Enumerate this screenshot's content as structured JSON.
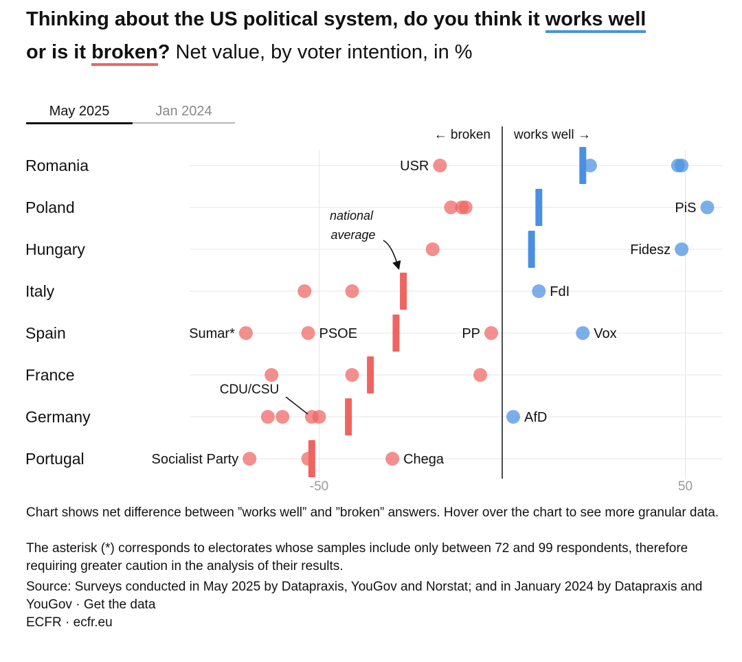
{
  "title": {
    "part1": "Thinking about the US political system, do you think it ",
    "works_well": "works well",
    "part2": "or is it ",
    "broken": "broken",
    "part3": "?",
    "rest": " Net value, by voter intention, in %"
  },
  "tabs": [
    {
      "label": "May 2025",
      "active": true
    },
    {
      "label": "Jan 2024",
      "active": false
    }
  ],
  "colors": {
    "broken": "#ef6461",
    "works_well": "#4a90e2",
    "grid": "#e6e6e6",
    "axis": "#111111"
  },
  "chart_data": {
    "type": "scatter",
    "title": "Thinking about the US political system, do you think it works well or is it broken? Net value, by voter intention, in %",
    "xlim": [
      -80,
      60
    ],
    "xticks": [
      -50,
      50
    ],
    "x_tick_labels": [
      "-50",
      "50"
    ],
    "direction_labels": {
      "left": "← broken",
      "right": "works well →"
    },
    "countries": [
      "Romania",
      "Poland",
      "Hungary",
      "Italy",
      "Spain",
      "France",
      "Germany",
      "Portugal"
    ],
    "national_average": [
      22,
      10,
      8,
      -27,
      -29,
      -36,
      -42,
      -52
    ],
    "parties": [
      {
        "country": "Romania",
        "value": -17,
        "label": "USR",
        "label_side": "left"
      },
      {
        "country": "Romania",
        "value": 24
      },
      {
        "country": "Romania",
        "value": 48
      },
      {
        "country": "Romania",
        "value": 49
      },
      {
        "country": "Poland",
        "value": -14
      },
      {
        "country": "Poland",
        "value": -11
      },
      {
        "country": "Poland",
        "value": -10
      },
      {
        "country": "Poland",
        "value": 56,
        "label": "PiS",
        "label_side": "left"
      },
      {
        "country": "Hungary",
        "value": -19
      },
      {
        "country": "Hungary",
        "value": 49,
        "label": "Fidesz",
        "label_side": "left"
      },
      {
        "country": "Italy",
        "value": -54
      },
      {
        "country": "Italy",
        "value": -41
      },
      {
        "country": "Italy",
        "value": 10,
        "label": "FdI",
        "label_side": "right"
      },
      {
        "country": "Spain",
        "value": -70,
        "label": "Sumar*",
        "label_side": "left"
      },
      {
        "country": "Spain",
        "value": -53,
        "label": "PSOE",
        "label_side": "right"
      },
      {
        "country": "Spain",
        "value": -3,
        "label": "PP",
        "label_side": "left"
      },
      {
        "country": "Spain",
        "value": 22,
        "label": "Vox",
        "label_side": "right"
      },
      {
        "country": "France",
        "value": -63
      },
      {
        "country": "France",
        "value": -41
      },
      {
        "country": "France",
        "value": -6
      },
      {
        "country": "Germany",
        "value": -64
      },
      {
        "country": "Germany",
        "value": -60
      },
      {
        "country": "Germany",
        "value": -52
      },
      {
        "country": "Germany",
        "value": -50
      },
      {
        "country": "Germany",
        "value": 3,
        "label": "AfD",
        "label_side": "right"
      },
      {
        "country": "Portugal",
        "value": -69,
        "label": "Socialist Party",
        "label_side": "left"
      },
      {
        "country": "Portugal",
        "value": -53
      },
      {
        "country": "Portugal",
        "value": -30,
        "label": "Chega",
        "label_side": "right"
      }
    ],
    "annotations": [
      {
        "text_lines": [
          "national",
          "average"
        ],
        "points_to": "Italy national average"
      },
      {
        "text": "CDU/CSU",
        "points_to": "Germany -52"
      }
    ]
  },
  "notes": {
    "explanation": "Chart shows net difference between ”works well” and ”broken” answers. Hover over the chart to see more granular data.",
    "asterisk": "The asterisk (*) corresponds to electorates whose samples include only between 72 and 99 respondents, therefore requiring greater caution in the analysis of their results.",
    "source": "Source: Surveys conducted in May 2025 by Datapraxis, YouGov and Norstat; and in January 2024 by Datapraxis and YouGov",
    "get_data": "Get the data",
    "separator": " · ",
    "org": "ECFR",
    "site": "ecfr.eu"
  }
}
